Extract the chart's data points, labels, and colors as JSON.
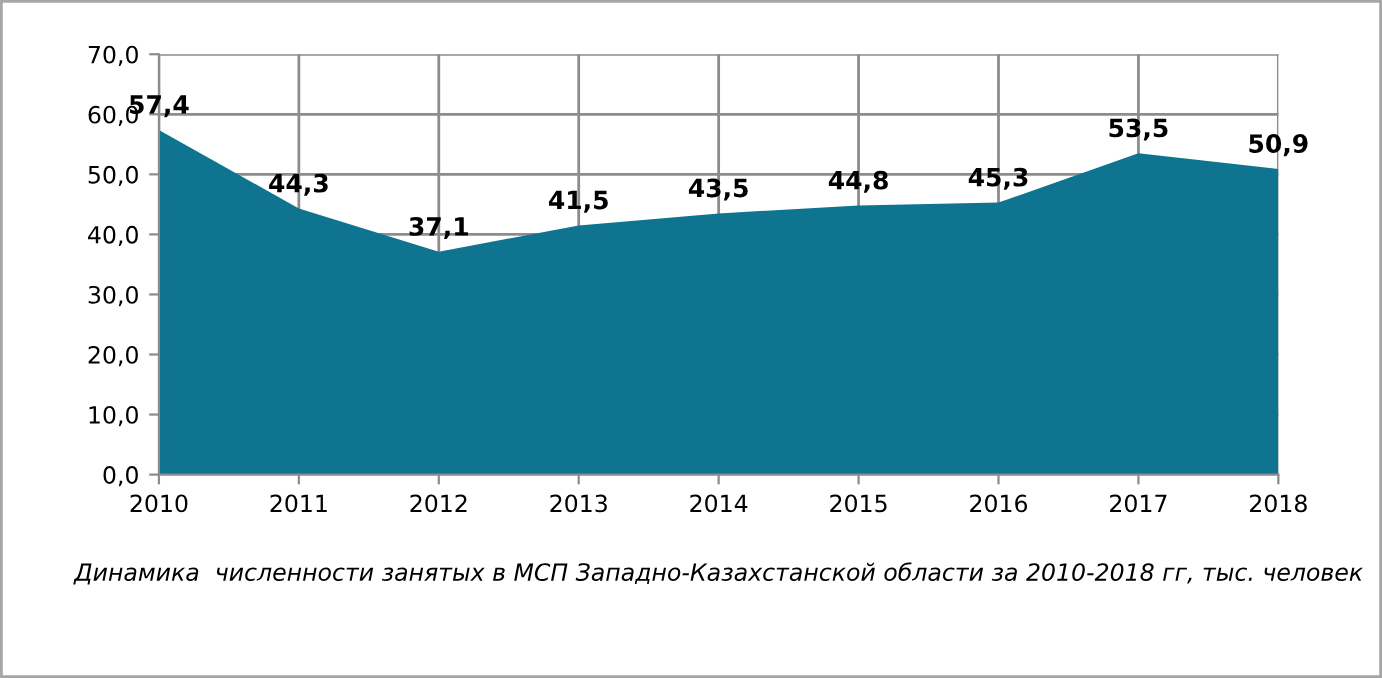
{
  "chart_data": {
    "type": "area",
    "categories": [
      "2010",
      "2011",
      "2012",
      "2013",
      "2014",
      "2015",
      "2016",
      "2017",
      "2018"
    ],
    "values": [
      57.4,
      44.3,
      37.1,
      41.5,
      43.5,
      44.8,
      45.3,
      53.5,
      50.9
    ],
    "value_labels": [
      "57,4",
      "44,3",
      "37,1",
      "41,5",
      "43,5",
      "44,8",
      "45,3",
      "53,5",
      "50,9"
    ],
    "color": "#0e7490",
    "ylim": [
      0,
      70
    ],
    "yticks": [
      {
        "value": 0,
        "label": "0,0"
      },
      {
        "value": 10,
        "label": "10,0"
      },
      {
        "value": 20,
        "label": "20,0"
      },
      {
        "value": 30,
        "label": "30,0"
      },
      {
        "value": 40,
        "label": "40,0"
      },
      {
        "value": 50,
        "label": "50,0"
      },
      {
        "value": 60,
        "label": "60,0"
      },
      {
        "value": 70,
        "label": "70,0"
      }
    ],
    "grid": true,
    "annotations": [
      "Динамика  численности занятых в МСП Западно-Казахстанской области за 2010-2018 гг, тыс. человек"
    ]
  }
}
